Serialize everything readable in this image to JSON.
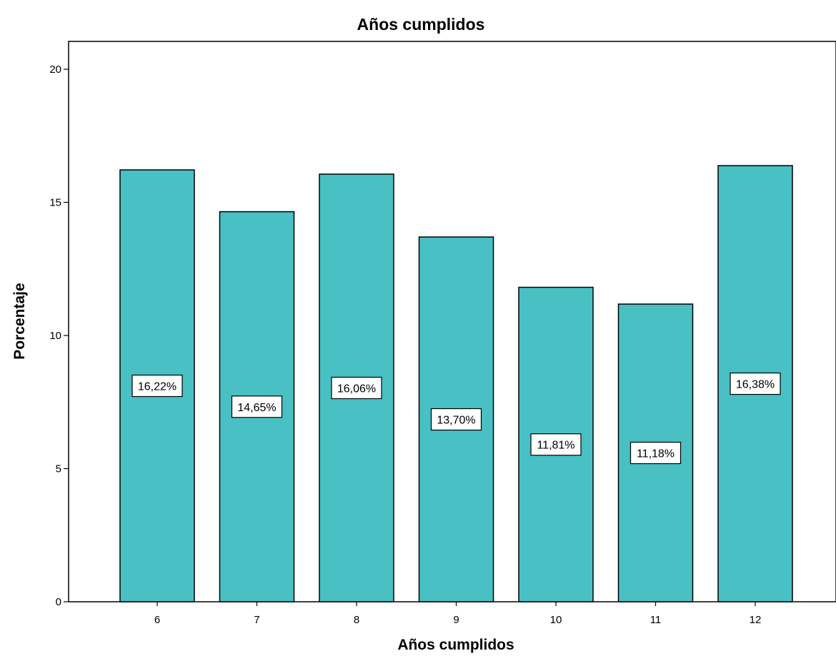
{
  "chart_data": {
    "type": "bar",
    "title": "Años cumplidos",
    "xlabel": "Años cumplidos",
    "ylabel": "Porcentaje",
    "categories": [
      "6",
      "7",
      "8",
      "9",
      "10",
      "11",
      "12"
    ],
    "values": [
      16.22,
      14.65,
      16.06,
      13.7,
      11.81,
      11.18,
      16.38
    ],
    "data_labels": [
      "16,22%",
      "14,65%",
      "16,06%",
      "13,70%",
      "11,81%",
      "11,18%",
      "16,38%"
    ],
    "ylim": [
      0,
      21
    ],
    "yticks": [
      0,
      5,
      10,
      15,
      20
    ],
    "grid": false,
    "legend": "none",
    "bar_color": "#48c0c4",
    "edge_color": "#000000"
  }
}
